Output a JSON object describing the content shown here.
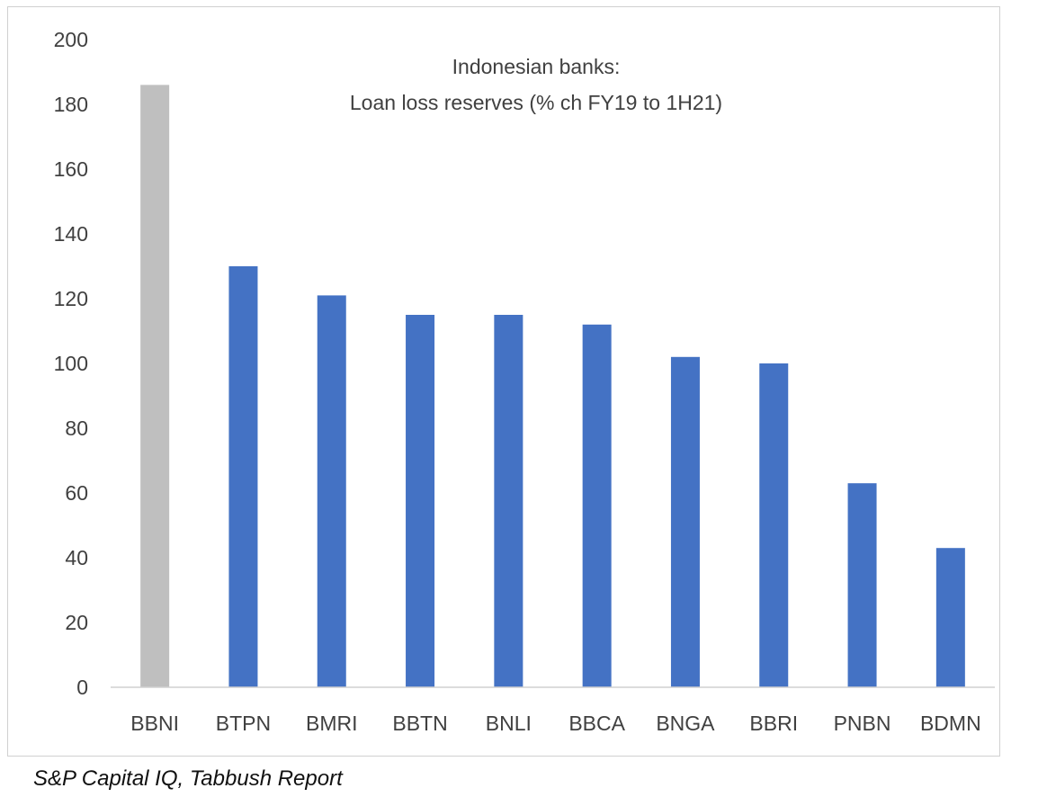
{
  "chart_data": {
    "type": "bar",
    "title_lines": [
      "Indonesian banks:",
      "Loan loss reserves (% ch FY19 to 1H21)"
    ],
    "xlabel": "",
    "ylabel": "",
    "categories": [
      "BBNI",
      "BTPN",
      "BMRI",
      "BBTN",
      "BNLI",
      "BBCA",
      "BNGA",
      "BBRI",
      "PNBN",
      "BDMN"
    ],
    "values": [
      186,
      130,
      121,
      115,
      115,
      112,
      102,
      100,
      63,
      43
    ],
    "ylim": [
      0,
      200
    ],
    "yticks": [
      0,
      20,
      40,
      60,
      80,
      100,
      120,
      140,
      160,
      180,
      200
    ],
    "grid": false,
    "legend": "none",
    "bar_colors": [
      "#bfbfbf",
      "#4472c4",
      "#4472c4",
      "#4472c4",
      "#4472c4",
      "#4472c4",
      "#4472c4",
      "#4472c4",
      "#4472c4",
      "#4472c4"
    ]
  },
  "source_note": "S&P Capital IQ, Tabbush Report"
}
